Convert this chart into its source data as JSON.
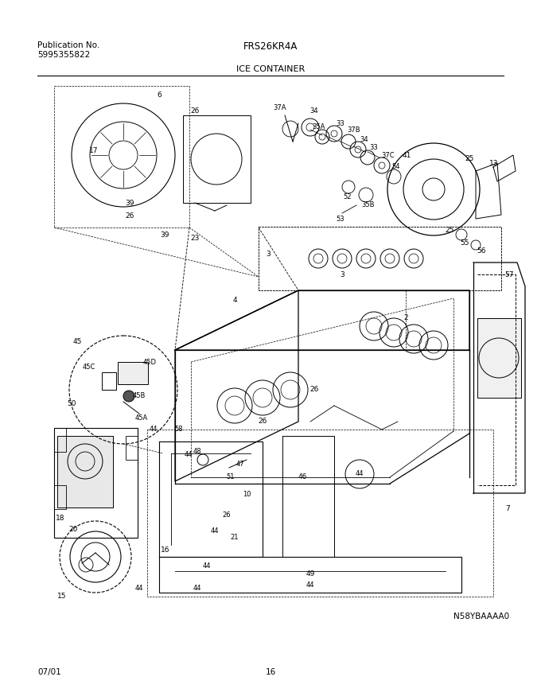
{
  "title_left_line1": "Publication No.",
  "title_left_line2": "5995355822",
  "title_center": "FRS26KR4A",
  "subtitle": "ICE CONTAINER",
  "footer_left": "07/01",
  "footer_center": "16",
  "diagram_code": "N58YBAAAA0",
  "bg_color": "#ffffff",
  "text_color": "#000000",
  "figwidth": 6.8,
  "figheight": 8.8,
  "dpi": 100
}
